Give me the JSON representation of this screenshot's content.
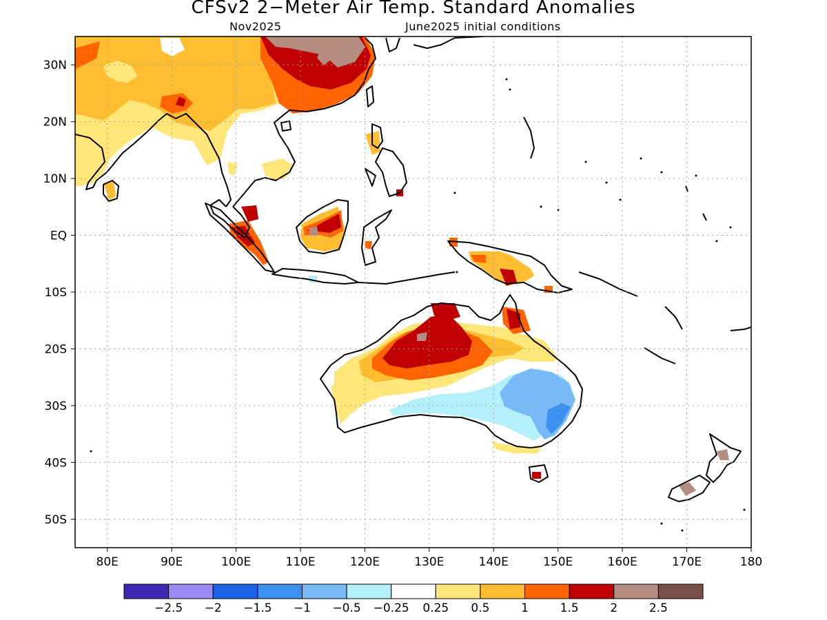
{
  "title": "CFSv2 2−Meter Air Temp. Standard Anomalies",
  "subtitle_left": "Nov2025",
  "subtitle_right": "June2025 initial conditions",
  "chart_data": {
    "type": "heatmap",
    "title": "CFSv2 2−Meter Air Temp. Standard Anomalies",
    "xlim": [
      75,
      180
    ],
    "ylim": [
      -55,
      35
    ],
    "x_ticks": [
      80,
      90,
      100,
      110,
      120,
      130,
      140,
      150,
      160,
      170,
      180
    ],
    "x_tick_labels": [
      "80E",
      "90E",
      "100E",
      "110E",
      "120E",
      "130E",
      "140E",
      "150E",
      "160E",
      "170E",
      "180"
    ],
    "y_ticks": [
      30,
      20,
      10,
      0,
      -10,
      -20,
      -30,
      -40,
      -50
    ],
    "y_tick_labels": [
      "30N",
      "20N",
      "10N",
      "EQ",
      "10S",
      "20S",
      "30S",
      "40S",
      "50S"
    ],
    "grid": true,
    "colorbar": {
      "colors": [
        "#3f28b4",
        "#9b8cf5",
        "#1e63e6",
        "#3c91f0",
        "#78b9f8",
        "#b4f0fa",
        "#ffffff",
        "#ffe678",
        "#ffbe32",
        "#ff6400",
        "#c00000",
        "#b48c82",
        "#7a5048"
      ],
      "labels": [
        "−2.5",
        "−2",
        "−1.5",
        "−1",
        "−0.5",
        "−0.25",
        "0.25",
        "0.5",
        "1",
        "1.5",
        "2",
        "2.5"
      ]
    }
  }
}
